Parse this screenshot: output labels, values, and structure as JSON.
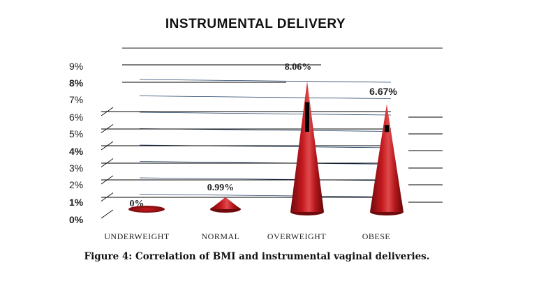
{
  "chart_data": {
    "type": "bar",
    "title": "INSTRUMENTAL DELIVERY",
    "caption": "Figure 4: Correlation of BMI and instrumental vaginal deliveries.",
    "categories": [
      "UNDERWEIGHT",
      "NORMAL",
      "OVERWEIGHT",
      "OBESE"
    ],
    "values": [
      0,
      0.99,
      8.06,
      6.67
    ],
    "data_labels": [
      "0%",
      "0.99%",
      "8.06%",
      "6.67%"
    ],
    "y_ticks": [
      "0%",
      "1%",
      "2%",
      "3%",
      "4%",
      "5%",
      "6%",
      "7%",
      "8%",
      "9%"
    ],
    "ylim": [
      0,
      9
    ],
    "xlabel": "",
    "ylabel": "",
    "legend": "none",
    "grid": true,
    "mark_shape": "cone",
    "colors": {
      "cone": "#b3161a",
      "cone_highlight": "#e04a4c",
      "cone_shadow": "#6e0a0c",
      "grid": "#1f3f66",
      "accent": "#000000"
    }
  }
}
